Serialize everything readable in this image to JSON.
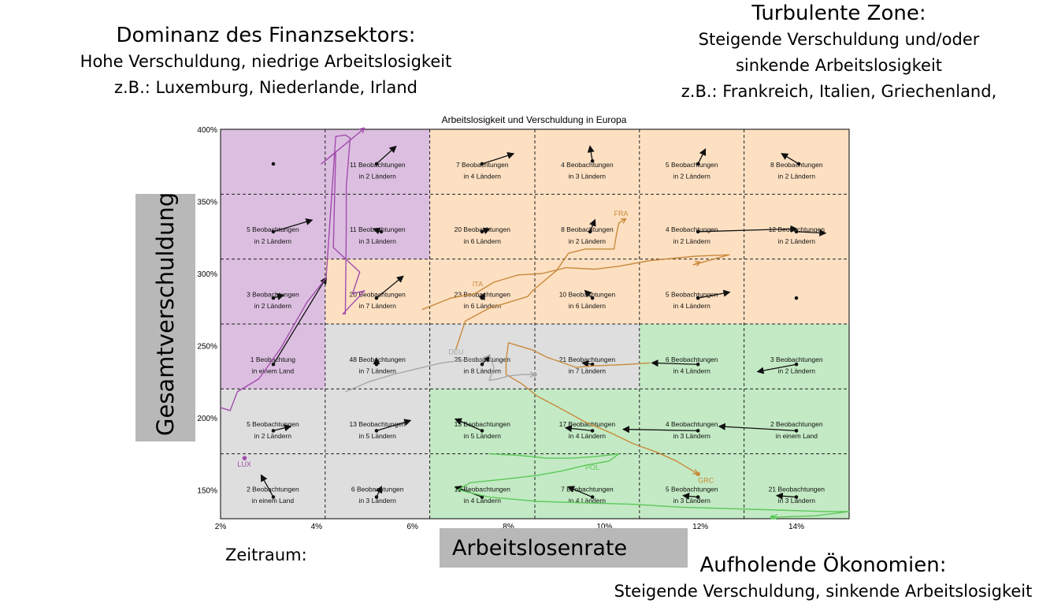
{
  "corner_labels": {
    "top_left": {
      "title": "Dominanz des Finanzsektors:",
      "lines": [
        "Hohe Verschuldung, niedrige Arbeitslosigkeit",
        "z.B.: Luxemburg, Niederlande, Irland"
      ]
    },
    "top_right": {
      "title": "Turbulente Zone:",
      "lines": [
        "Steigende Verschuldung und/oder",
        "sinkende Arbeitslosigkeit",
        "z.B.: Frankreich, Italien, Griechenland,"
      ]
    },
    "bottom_right": {
      "title": "Aufholende Ökonomien:",
      "lines": [
        "Steigende Verschuldung, sinkende Arbeitslosigkeit"
      ]
    }
  },
  "zeitraum_label": "Zeitraum:",
  "colors": {
    "purple_zone": "#dcbfe0",
    "orange_zone": "#fde0c2",
    "gray_zone": "#dedede",
    "green_zone": "#c3eac4",
    "lux": "#a24cad",
    "fra": "#c98a3c",
    "ita": "#c98a3c",
    "grc": "#c98a3c",
    "deu": "#a8a8a8",
    "pol": "#5cc85a"
  },
  "chart_data": {
    "type": "line",
    "title": "Arbeitslosigkeit und Verschuldung in Europa",
    "xlabel": "Arbeitslosenrate",
    "ylabel": "Gesamtverschuldung",
    "xlim": [
      2.0,
      15.1
    ],
    "ylim": [
      130,
      400
    ],
    "x_ticks": [
      "2%",
      "4%",
      "6%",
      "8%",
      "10%",
      "12%",
      "14%"
    ],
    "x_tick_values": [
      2,
      4,
      6,
      8,
      10,
      12,
      14
    ],
    "y_ticks": [
      "150%",
      "200%",
      "250%",
      "300%",
      "350%",
      "400%"
    ],
    "y_tick_values": [
      150,
      200,
      250,
      300,
      350,
      400
    ],
    "grid": {
      "x": [
        2.0,
        4.18,
        6.36,
        8.55,
        10.73,
        12.91,
        15.1
      ],
      "y": [
        130,
        175,
        220,
        265,
        310,
        355,
        400
      ]
    },
    "zones": [
      {
        "zone": "purple",
        "cells": [
          [
            0,
            5
          ],
          [
            0,
            4
          ],
          [
            0,
            3
          ],
          [
            0,
            2
          ],
          [
            1,
            5
          ],
          [
            1,
            4
          ]
        ]
      },
      {
        "zone": "orange",
        "cells": [
          [
            1,
            3
          ],
          [
            2,
            5
          ],
          [
            2,
            4
          ],
          [
            2,
            3
          ],
          [
            3,
            5
          ],
          [
            3,
            4
          ],
          [
            3,
            3
          ],
          [
            4,
            5
          ],
          [
            4,
            4
          ],
          [
            4,
            3
          ],
          [
            5,
            5
          ],
          [
            5,
            4
          ],
          [
            5,
            3
          ]
        ]
      },
      {
        "zone": "gray",
        "cells": [
          [
            0,
            1
          ],
          [
            0,
            0
          ],
          [
            1,
            2
          ],
          [
            1,
            1
          ],
          [
            1,
            0
          ],
          [
            2,
            2
          ],
          [
            3,
            2
          ]
        ]
      },
      {
        "zone": "green",
        "cells": [
          [
            2,
            1
          ],
          [
            2,
            0
          ],
          [
            3,
            1
          ],
          [
            3,
            0
          ],
          [
            4,
            2
          ],
          [
            4,
            1
          ],
          [
            4,
            0
          ],
          [
            5,
            2
          ],
          [
            5,
            1
          ],
          [
            5,
            0
          ]
        ]
      }
    ],
    "cells": [
      {
        "col": 0,
        "row": 5,
        "line1": "",
        "line2": "",
        "dot": [
          3.1,
          376
        ],
        "arrow": null
      },
      {
        "col": 1,
        "row": 5,
        "line1": "11 Beobachtungen",
        "line2": "in 2 Ländern",
        "dot": [
          5.25,
          376
        ],
        "arrow": [
          5.65,
          388
        ]
      },
      {
        "col": 2,
        "row": 5,
        "line1": "7 Beobachtungen",
        "line2": "in 4 Ländern",
        "dot": [
          7.45,
          376
        ],
        "arrow": [
          8.1,
          383
        ]
      },
      {
        "col": 3,
        "row": 5,
        "line1": "4 Beobachtungen",
        "line2": "in 3 Ländern",
        "dot": [
          9.75,
          378
        ],
        "arrow": [
          9.7,
          388
        ]
      },
      {
        "col": 4,
        "row": 5,
        "line1": "5 Beobachtungen",
        "line2": "in 2 Ländern",
        "dot": [
          11.95,
          376
        ],
        "arrow": [
          12.1,
          386
        ]
      },
      {
        "col": 5,
        "row": 5,
        "line1": "8 Beobachtungen",
        "line2": "in 2 Ländern",
        "dot": [
          14.05,
          376
        ],
        "arrow": [
          13.7,
          383
        ]
      },
      {
        "col": 0,
        "row": 4,
        "line1": "5 Beobachtungen",
        "line2": "in 2 Ländern",
        "dot": [
          3.1,
          329
        ],
        "arrow": [
          3.9,
          337
        ]
      },
      {
        "col": 1,
        "row": 4,
        "line1": "11 Beobachtungen",
        "line2": "in 3 Ländern",
        "dot": [
          5.35,
          329
        ],
        "arrow": [
          5.2,
          331
        ]
      },
      {
        "col": 2,
        "row": 4,
        "line1": "20 Beobachtungen",
        "line2": "in 6 Ländern",
        "dot": [
          7.45,
          329
        ],
        "arrow": [
          7.6,
          331
        ]
      },
      {
        "col": 3,
        "row": 4,
        "line1": "8 Beobachtungen",
        "line2": "in 2 Ländern",
        "dot": [
          9.7,
          329
        ],
        "arrow": [
          9.8,
          337
        ]
      },
      {
        "col": 4,
        "row": 4,
        "line1": "4 Beobachtungen",
        "line2": "in 2 Ländern",
        "dot": [
          11.95,
          329
        ],
        "arrow": [
          14.0,
          331
        ]
      },
      {
        "col": 5,
        "row": 4,
        "line1": "12 Beobachtungen",
        "line2": "in 2 Ländern",
        "dot": [
          14.0,
          329
        ],
        "arrow": [
          14.6,
          328
        ]
      },
      {
        "col": 0,
        "row": 3,
        "line1": "3 Beobachtungen",
        "line2": "in 2 Ländern",
        "dot": [
          3.1,
          283
        ],
        "arrow": [
          3.3,
          285
        ]
      },
      {
        "col": 1,
        "row": 3,
        "line1": "20 Beobachtungen",
        "line2": "in 7 Ländern",
        "dot": [
          5.25,
          283
        ],
        "arrow": [
          5.8,
          298
        ]
      },
      {
        "col": 2,
        "row": 3,
        "line1": "23 Beobachtungen",
        "line2": "in 6 Ländern",
        "dot": [
          7.45,
          283
        ],
        "arrow": [
          7.5,
          286
        ]
      },
      {
        "col": 3,
        "row": 3,
        "line1": "10 Beobachtungen",
        "line2": "in 6 Ländern",
        "dot": [
          9.75,
          283
        ],
        "arrow": [
          9.6,
          288
        ]
      },
      {
        "col": 4,
        "row": 3,
        "line1": "5 Beobachtungen",
        "line2": "in 4 Ländern",
        "dot": [
          11.95,
          283
        ],
        "arrow": [
          12.6,
          287
        ]
      },
      {
        "col": 5,
        "row": 3,
        "line1": "",
        "line2": "",
        "dot": [
          14.0,
          283
        ],
        "arrow": null
      },
      {
        "col": 0,
        "row": 2,
        "line1": "1 Beobachtung",
        "line2": "in einem Land",
        "dot": [
          3.1,
          237
        ],
        "arrow": [
          4.2,
          297
        ]
      },
      {
        "col": 1,
        "row": 2,
        "line1": "48 Beobachtungen",
        "line2": "in 7 Ländern",
        "dot": [
          5.25,
          237
        ],
        "arrow": [
          5.25,
          241
        ]
      },
      {
        "col": 2,
        "row": 2,
        "line1": "25 Beobachtungen",
        "line2": "in 8 Ländern",
        "dot": [
          7.45,
          237
        ],
        "arrow": [
          7.6,
          243
        ]
      },
      {
        "col": 3,
        "row": 2,
        "line1": "21 Beobachtungen",
        "line2": "in 7 Ländern",
        "dot": [
          9.75,
          237
        ],
        "arrow": [
          9.55,
          238
        ]
      },
      {
        "col": 4,
        "row": 2,
        "line1": "6 Beobachtungen",
        "line2": "in 4 Ländern",
        "dot": [
          11.95,
          237
        ],
        "arrow": [
          11.0,
          238
        ]
      },
      {
        "col": 5,
        "row": 2,
        "line1": "3 Beobachtungen",
        "line2": "in 2 Ländern",
        "dot": [
          14.0,
          237
        ],
        "arrow": [
          13.2,
          232
        ]
      },
      {
        "col": 0,
        "row": 1,
        "line1": "5 Beobachtungen",
        "line2": "in 2 Ländern",
        "dot": [
          3.1,
          191
        ],
        "arrow": [
          3.45,
          194
        ]
      },
      {
        "col": 1,
        "row": 1,
        "line1": "13 Beobachtungen",
        "line2": "in 5 Ländern",
        "dot": [
          5.25,
          191
        ],
        "arrow": [
          5.95,
          198
        ]
      },
      {
        "col": 2,
        "row": 1,
        "line1": "13 Beobachtungen",
        "line2": "in 5 Ländern",
        "dot": [
          7.45,
          191
        ],
        "arrow": [
          6.9,
          199
        ]
      },
      {
        "col": 3,
        "row": 1,
        "line1": "17 Beobachtungen",
        "line2": "in 4 Ländern",
        "dot": [
          9.75,
          191
        ],
        "arrow": [
          9.2,
          193
        ]
      },
      {
        "col": 4,
        "row": 1,
        "line1": "4 Beobachtungen",
        "line2": "in 3 Ländern",
        "dot": [
          11.95,
          191
        ],
        "arrow": [
          10.4,
          192
        ]
      },
      {
        "col": 5,
        "row": 1,
        "line1": "2 Beobachtungen",
        "line2": "in einem Land",
        "dot": [
          14.0,
          191
        ],
        "arrow": [
          12.4,
          194
        ]
      },
      {
        "col": 0,
        "row": 0,
        "line1": "2 Beobachtungen",
        "line2": "in einem Land",
        "dot": [
          3.1,
          145
        ],
        "arrow": [
          2.85,
          160
        ]
      },
      {
        "col": 1,
        "row": 0,
        "line1": "6 Beobachtungen",
        "line2": "in 3 Ländern",
        "dot": [
          5.25,
          145
        ],
        "arrow": [
          5.35,
          152
        ]
      },
      {
        "col": 2,
        "row": 0,
        "line1": "16 Beobachtungen",
        "line2": "in 4 Ländern",
        "dot": [
          7.45,
          145
        ],
        "arrow": [
          6.9,
          152
        ]
      },
      {
        "col": 3,
        "row": 0,
        "line1": "7 Beobachtungen",
        "line2": "in 4 Ländern",
        "dot": [
          9.75,
          145
        ],
        "arrow": [
          9.25,
          152
        ]
      },
      {
        "col": 4,
        "row": 0,
        "line1": "5 Beobachtungen",
        "line2": "in 3 Ländern",
        "dot": [
          11.95,
          145
        ],
        "arrow": [
          11.65,
          146
        ]
      },
      {
        "col": 5,
        "row": 0,
        "line1": "21 Beobachtungen",
        "line2": "in 3 Ländern",
        "dot": [
          14.0,
          145
        ],
        "arrow": [
          13.6,
          146
        ]
      }
    ],
    "series": [
      {
        "name": "LUX",
        "color_key": "lux",
        "label_at": [
          2.35,
          166
        ],
        "end_marker": [
          2.5,
          172
        ],
        "points": [
          [
            2.0,
            207
          ],
          [
            2.2,
            205
          ],
          [
            2.35,
            218
          ],
          [
            2.8,
            227
          ],
          [
            3.25,
            248
          ],
          [
            3.8,
            280
          ],
          [
            4.2,
            297
          ],
          [
            4.4,
            395
          ],
          [
            4.6,
            396
          ],
          [
            4.7,
            394
          ],
          [
            4.62,
            360
          ],
          [
            4.62,
            330
          ],
          [
            4.6,
            272
          ],
          [
            4.55,
            272
          ],
          [
            5.0,
            288
          ],
          [
            4.75,
            286
          ],
          [
            4.9,
            301
          ],
          [
            4.35,
            318
          ],
          [
            4.4,
            384
          ],
          [
            4.1,
            376
          ],
          [
            4.9,
            398
          ],
          [
            5.0,
            401
          ]
        ]
      },
      {
        "name": "FRA",
        "color_key": "fra",
        "label_at": [
          10.2,
          340
        ],
        "end_marker": null,
        "points": [
          [
            6.9,
            247
          ],
          [
            7.1,
            267
          ],
          [
            7.6,
            276
          ],
          [
            8.4,
            284
          ],
          [
            8.5,
            288
          ],
          [
            9.0,
            302
          ],
          [
            9.25,
            314
          ],
          [
            9.6,
            317
          ],
          [
            10.0,
            317
          ],
          [
            10.2,
            317
          ],
          [
            10.25,
            327
          ],
          [
            10.3,
            335
          ],
          [
            10.45,
            338
          ]
        ]
      },
      {
        "name": "ITA",
        "color_key": "ita",
        "label_at": [
          7.25,
          291
        ],
        "end_marker": null,
        "points": [
          [
            6.2,
            275
          ],
          [
            6.8,
            283
          ],
          [
            7.3,
            286
          ],
          [
            7.7,
            294
          ],
          [
            8.2,
            299
          ],
          [
            8.7,
            300
          ],
          [
            9.2,
            304
          ],
          [
            9.8,
            303
          ],
          [
            10.3,
            305
          ],
          [
            10.95,
            309
          ],
          [
            11.9,
            312
          ],
          [
            12.6,
            313
          ],
          [
            11.85,
            306
          ],
          [
            12.0,
            308
          ]
        ]
      },
      {
        "name": "GRC",
        "color_key": "grc",
        "label_at": [
          11.95,
          155
        ],
        "end_marker": [
          11.95,
          161
        ],
        "points": [
          [
            10.95,
            238
          ],
          [
            10.5,
            237
          ],
          [
            9.8,
            236
          ],
          [
            9.4,
            235
          ],
          [
            8.8,
            242
          ],
          [
            8.5,
            247
          ],
          [
            8.0,
            252
          ],
          [
            7.95,
            240
          ],
          [
            7.95,
            230
          ],
          [
            8.3,
            223
          ],
          [
            8.6,
            215
          ],
          [
            9.0,
            208
          ],
          [
            9.6,
            197
          ],
          [
            10.1,
            190
          ],
          [
            10.6,
            182
          ],
          [
            11.1,
            176
          ],
          [
            11.5,
            170
          ],
          [
            11.95,
            161
          ]
        ]
      },
      {
        "name": "DEU",
        "color_key": "deu",
        "label_at": [
          6.75,
          244
        ],
        "end_marker": [
          8.55,
          230
        ],
        "points": [
          [
            4.6,
            218
          ],
          [
            5.1,
            225
          ],
          [
            5.6,
            230
          ],
          [
            6.1,
            234
          ],
          [
            6.6,
            238
          ],
          [
            7.1,
            240
          ],
          [
            7.4,
            240
          ],
          [
            7.6,
            243
          ],
          [
            7.7,
            235
          ],
          [
            7.6,
            226
          ],
          [
            7.8,
            227
          ],
          [
            8.0,
            229
          ],
          [
            8.3,
            230
          ],
          [
            8.55,
            230
          ]
        ]
      },
      {
        "name": "POL",
        "color_key": "pol",
        "label_at": [
          9.6,
          164
        ],
        "end_marker": [
          13.5,
          131
        ],
        "points": [
          [
            7.6,
            175
          ],
          [
            8.2,
            174
          ],
          [
            8.8,
            172
          ],
          [
            9.3,
            172
          ],
          [
            9.8,
            173
          ],
          [
            10.3,
            175
          ],
          [
            10.1,
            170
          ],
          [
            9.6,
            167
          ],
          [
            9.1,
            163
          ],
          [
            8.6,
            160
          ],
          [
            7.8,
            157
          ],
          [
            7.2,
            155
          ],
          [
            6.95,
            150
          ],
          [
            7.6,
            145
          ],
          [
            8.6,
            142
          ],
          [
            9.6,
            141
          ],
          [
            10.6,
            140
          ],
          [
            11.6,
            138
          ],
          [
            12.6,
            137
          ],
          [
            13.6,
            136
          ],
          [
            14.6,
            135
          ],
          [
            15.1,
            135
          ],
          [
            14.4,
            132
          ],
          [
            13.5,
            131
          ]
        ]
      }
    ]
  }
}
